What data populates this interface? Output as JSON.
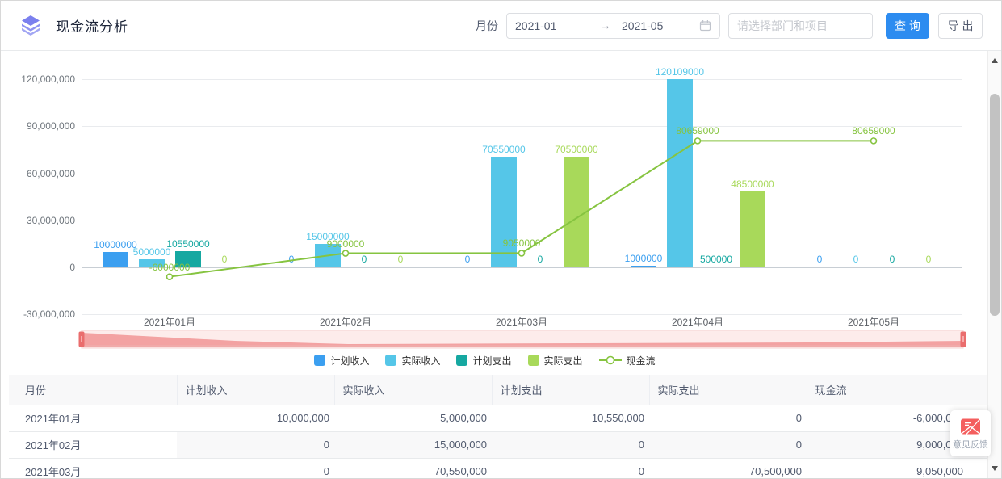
{
  "header": {
    "title": "现金流分析",
    "month_label": "月份",
    "date_start": "2021-01",
    "date_separator": "→",
    "date_end": "2021-05",
    "dept_placeholder": "请选择部门和项目",
    "query_label": "查询",
    "export_label": "导出"
  },
  "icons": {
    "logo": "layers-icon",
    "calendar": "calendar-icon",
    "feedback": "envelope-icon"
  },
  "colors": {
    "primary_button": "#2d8cf0",
    "datazoom_handle": "#ea6d6d",
    "datazoom_fill": "#f3a2a2",
    "datazoom_track": "#fdeceb"
  },
  "chart_data": {
    "type": "combo",
    "categories": [
      "2021年01月",
      "2021年02月",
      "2021年03月",
      "2021年04月",
      "2021年05月"
    ],
    "y_axis": {
      "ticks": [
        {
          "value": 120000000,
          "label": "120,000,000"
        },
        {
          "value": 90000000,
          "label": "90,000,000"
        },
        {
          "value": 60000000,
          "label": "60,000,000"
        },
        {
          "value": 30000000,
          "label": "30,000,000"
        },
        {
          "value": 0,
          "label": "0"
        },
        {
          "value": -30000000,
          "label": "-30,000,000"
        }
      ],
      "ylim": [
        -30000000,
        130000000
      ]
    },
    "legend_position": "bottom",
    "series": [
      {
        "name": "计划收入",
        "type": "bar",
        "color": "#3b9ff0",
        "values": [
          10000000,
          0,
          0,
          1000000,
          0
        ]
      },
      {
        "name": "实际收入",
        "type": "bar",
        "color": "#55c6e8",
        "values": [
          5000000,
          15000000,
          70550000,
          120109000,
          0
        ]
      },
      {
        "name": "计划支出",
        "type": "bar",
        "color": "#16a8a1",
        "values": [
          10550000,
          0,
          0,
          500000,
          0
        ]
      },
      {
        "name": "实际支出",
        "type": "bar",
        "color": "#a8d95a",
        "values": [
          0,
          0,
          70500000,
          48500000,
          0
        ]
      },
      {
        "name": "现金流",
        "type": "line",
        "color": "#86c440",
        "values": [
          -6000000,
          9000000,
          9050000,
          80659000,
          80659000
        ]
      }
    ]
  },
  "table": {
    "headers": [
      "月份",
      "计划收入",
      "实际收入",
      "计划支出",
      "实际支出",
      "现金流"
    ],
    "rows": [
      [
        "2021年01月",
        "10,000,000",
        "5,000,000",
        "10,550,000",
        "0",
        "-6,000,000"
      ],
      [
        "2021年02月",
        "0",
        "15,000,000",
        "0",
        "0",
        "9,000,000"
      ],
      [
        "2021年03月",
        "0",
        "70,550,000",
        "0",
        "70,500,000",
        "9,050,000"
      ]
    ]
  },
  "feedback": {
    "label": "意见反馈"
  }
}
